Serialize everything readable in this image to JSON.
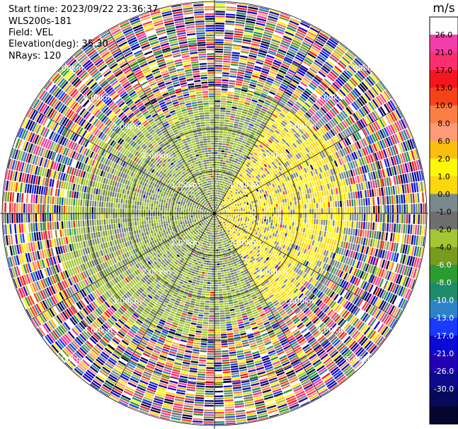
{
  "header": {
    "start_time": "Start time: 2023/09/22 23:36:37",
    "instrument": "WLS200s-181",
    "field": "Field: VEL",
    "elevation": "Elevation(deg): 35.30",
    "nrays": "NRays: 120"
  },
  "chart_data": {
    "type": "heatmap",
    "projection": "polar-ppi",
    "field": "VEL",
    "rays": 120,
    "range_rings_km": [
      1,
      2,
      3,
      4,
      5
    ],
    "ring_labels": [
      "1.00km",
      "2.00km",
      "3.00km",
      "4.00km",
      "5.00km"
    ],
    "colorbar": {
      "unit": "m/s",
      "ticks": [
        "26.0",
        "21.0",
        "17.0",
        "13.0",
        "10.0",
        "8.0",
        "6.0",
        "2.0",
        "1.0",
        "0.0",
        "-1.0",
        "-2.0",
        "-4.0",
        "-6.0",
        "-8.0",
        "-10.0",
        "-13.0",
        "-17.0",
        "-21.0",
        "-26.0",
        "-30.0"
      ],
      "colors": [
        "#ffffff",
        "#f13ea8",
        "#fb2f6e",
        "#f4161e",
        "#f64218",
        "#fb7f45",
        "#fd9a77",
        "#fdbd0f",
        "#fef708",
        "#fcd70b",
        "#7a8a8c",
        "#6e6e6e",
        "#a4c633",
        "#789b1e",
        "#2b9b32",
        "#1f8a67",
        "#2c84c6",
        "#1a3bff",
        "#0a0ad9",
        "#2100b3",
        "#0d0a8c",
        "#060a5a",
        "#05052e"
      ]
    }
  }
}
